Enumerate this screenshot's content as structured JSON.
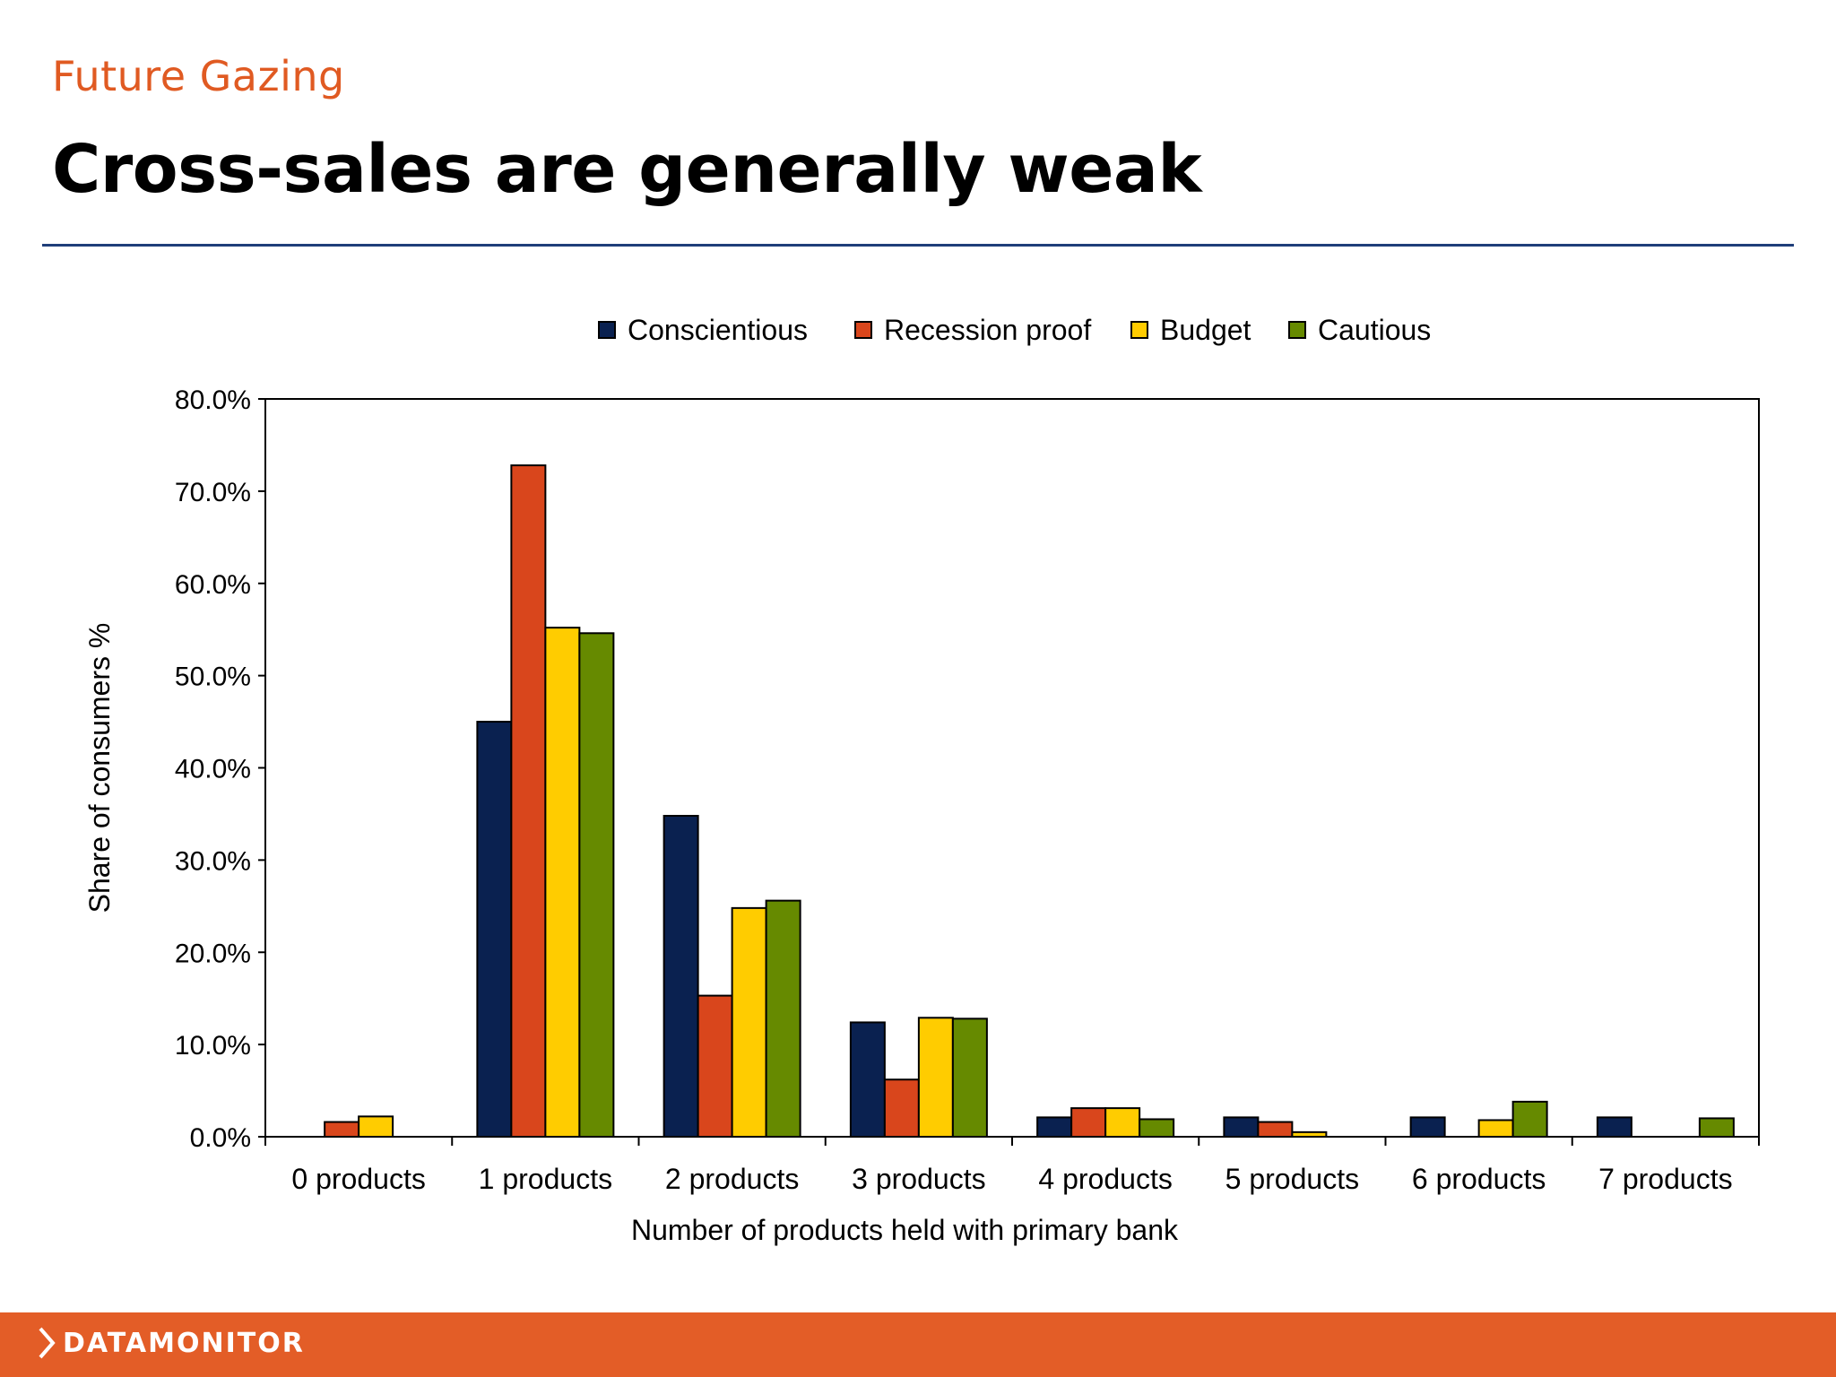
{
  "header": {
    "kicker": "Future Gazing",
    "title": "Cross-sales are generally weak"
  },
  "colors": {
    "accent": "#e05a22",
    "rule": "#1f3e7a",
    "footer": "#e35d27"
  },
  "footer": {
    "brand": "DATAMONITOR",
    "icon": "chevron-right-icon"
  },
  "chart_data": {
    "type": "bar",
    "title": "",
    "xlabel": "Number of products held with primary bank",
    "ylabel": "Share of consumers %",
    "ylim": [
      0,
      80
    ],
    "yticks": [
      "0.0%",
      "10.0%",
      "20.0%",
      "30.0%",
      "40.0%",
      "50.0%",
      "60.0%",
      "70.0%",
      "80.0%"
    ],
    "grid": false,
    "legend_position": "top",
    "categories": [
      "0 products",
      "1 products",
      "2 products",
      "3 products",
      "4 products",
      "5 products",
      "6 products",
      "7 products"
    ],
    "series": [
      {
        "name": "Conscientious",
        "color": "#0a2150",
        "values": [
          0,
          45.0,
          34.8,
          12.4,
          2.1,
          2.1,
          2.1,
          2.1
        ]
      },
      {
        "name": "Recession proof",
        "color": "#d9461c",
        "values": [
          1.6,
          72.8,
          15.3,
          6.2,
          3.1,
          1.6,
          0,
          0
        ]
      },
      {
        "name": "Budget",
        "color": "#ffcc00",
        "values": [
          2.2,
          55.2,
          24.8,
          12.9,
          3.1,
          0.5,
          1.8,
          0
        ]
      },
      {
        "name": "Cautious",
        "color": "#668a00",
        "values": [
          0,
          54.6,
          25.6,
          12.8,
          1.9,
          0,
          3.8,
          2.0
        ]
      }
    ]
  }
}
